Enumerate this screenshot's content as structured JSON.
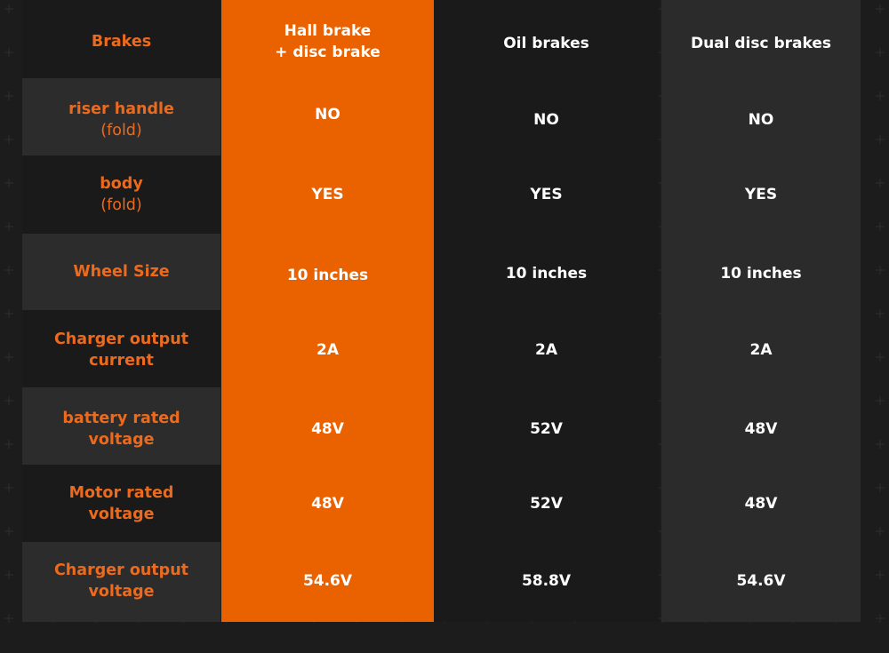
{
  "table": {
    "corner_label": "Brakes",
    "columns": [
      "Hall brake\n+ disc brake",
      "Oil brakes",
      "Dual disc brakes"
    ],
    "rows": [
      {
        "label": "riser handle",
        "sublabel": "(fold)",
        "values": [
          "NO",
          "NO",
          "NO"
        ]
      },
      {
        "label": "body",
        "sublabel": "(fold)",
        "values": [
          "YES",
          "YES",
          "YES"
        ]
      },
      {
        "label": "Wheel Size",
        "sublabel": "",
        "values": [
          "10 inches",
          "10 inches",
          "10 inches"
        ]
      },
      {
        "label": "Charger output\ncurrent",
        "sublabel": "",
        "values": [
          "2A",
          "2A",
          "2A"
        ]
      },
      {
        "label": "battery rated\nvoltage",
        "sublabel": "",
        "values": [
          "48V",
          "52V",
          "48V"
        ]
      },
      {
        "label": "Motor rated\nvoltage",
        "sublabel": "",
        "values": [
          "48V",
          "52V",
          "48V"
        ]
      },
      {
        "label": "Charger output\nvoltage",
        "sublabel": "",
        "values": [
          "54.6V",
          "58.8V",
          "54.6V"
        ]
      }
    ]
  },
  "colors": {
    "accent": "#ea6100",
    "label_text": "#ec6a1d",
    "background": "#1c1c1c",
    "value_text": "#ffffff"
  }
}
